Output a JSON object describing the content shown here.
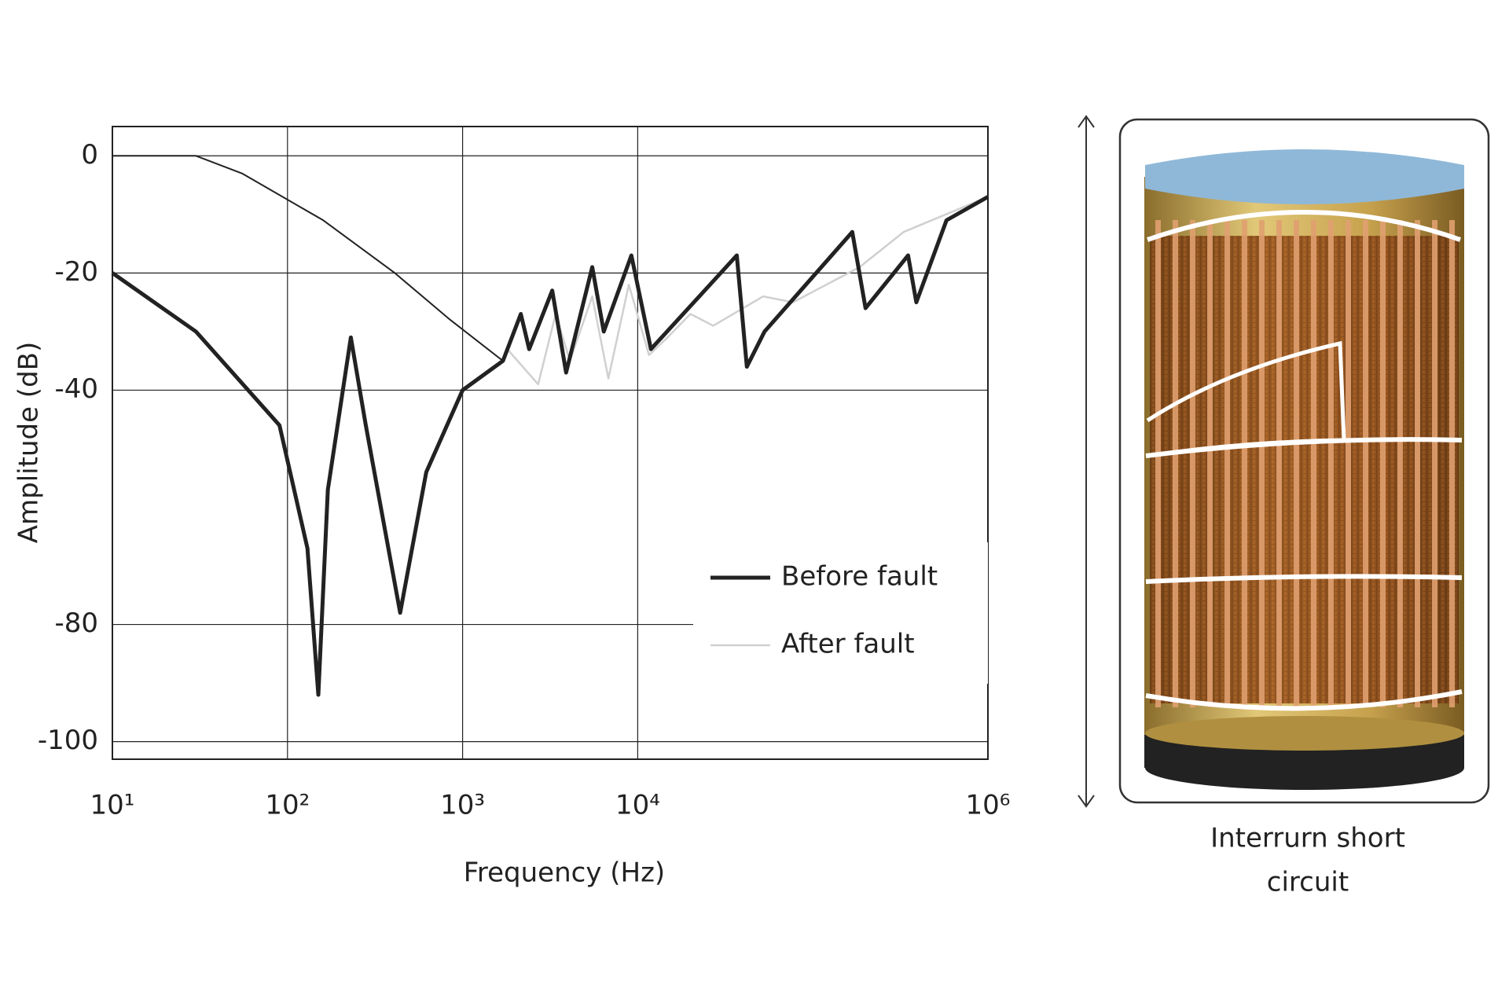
{
  "chart_data": {
    "type": "line",
    "x_label": "Frequency  (Hz)",
    "y_label": "Amplitude (dB)",
    "xlog": true,
    "grid": true,
    "legend": "lower right",
    "xlim": [
      10,
      1000000
    ],
    "ylim": [
      -103,
      5
    ],
    "xticks": [
      {
        "value": 10,
        "label": "10¹"
      },
      {
        "value": 100,
        "label": "10²"
      },
      {
        "value": 1000,
        "label": "10³"
      },
      {
        "value": 10000,
        "label": "10⁴"
      },
      {
        "value": 1000000,
        "label": "10⁶"
      }
    ],
    "yticks": [
      0,
      -20,
      -40,
      -80,
      -100
    ],
    "series": [
      {
        "name": "Before fault",
        "color": "#222222",
        "width": 5,
        "x": [
          10,
          30,
          90,
          130,
          150,
          170,
          230,
          280,
          440,
          620,
          1000,
          1700,
          2150,
          2400,
          3250,
          3900,
          5500,
          6400,
          9200,
          11900,
          36800,
          42000,
          53000,
          168000,
          200000,
          350000,
          390000,
          580000,
          1000000
        ],
        "values": [
          -20,
          -30,
          -46,
          -67,
          -92,
          -57,
          -31,
          -46,
          -78,
          -54,
          -40,
          -35,
          -27,
          -33,
          -23,
          -37,
          -19,
          -30,
          -17,
          -33,
          -17,
          -36,
          -30,
          -13,
          -26,
          -17,
          -25,
          -11,
          -7
        ]
      },
      {
        "name": "After fault",
        "color": "#d0d0d0",
        "width": 2.5,
        "x": [
          1700,
          1800,
          2700,
          3400,
          4100,
          5500,
          6800,
          8900,
          11600,
          14800,
          20000,
          27000,
          52000,
          77000,
          185000,
          330000,
          1000000
        ],
        "values": [
          -35,
          -33,
          -39,
          -27,
          -35,
          -24,
          -38,
          -22,
          -34,
          -31,
          -27,
          -29,
          -24,
          -25,
          -19,
          -13,
          -7
        ]
      },
      {
        "color": "#222222",
        "width": 2,
        "x": [
          10,
          30,
          55,
          160,
          410,
          850,
          1700
        ],
        "values": [
          0,
          0,
          -3,
          -11,
          -20,
          -28,
          -35
        ]
      }
    ]
  },
  "illustration": {
    "caption_lines": [
      "Interrurn short",
      "circuit"
    ]
  }
}
